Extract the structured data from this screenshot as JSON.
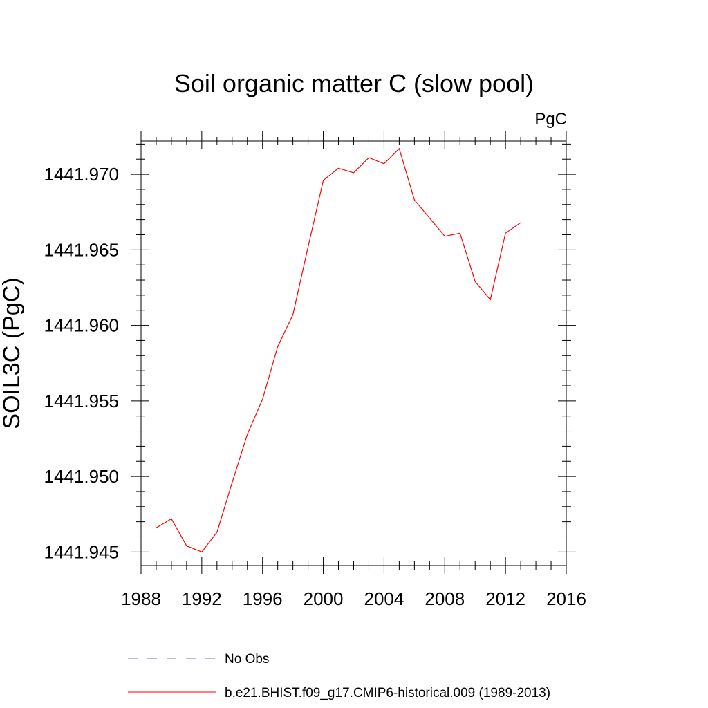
{
  "chart_data": {
    "type": "line",
    "title": "Soil organic matter C (slow pool)",
    "units_label": "PgC",
    "ylabel": "SOIL3C  (PgC)",
    "xlabel": "",
    "xlim": [
      1988,
      2016
    ],
    "ylim": [
      1441.9441,
      1441.9722
    ],
    "x_ticks": [
      1988,
      1992,
      1996,
      2000,
      2004,
      2008,
      2012,
      2016
    ],
    "x_tick_labels": [
      "1988",
      "1992",
      "1996",
      "2000",
      "2004",
      "2008",
      "2012",
      "2016"
    ],
    "y_ticks": [
      1441.945,
      1441.95,
      1441.955,
      1441.96,
      1441.965,
      1441.97
    ],
    "y_tick_labels": [
      "1441.945",
      "1441.950",
      "1441.955",
      "1441.960",
      "1441.965",
      "1441.970"
    ],
    "grid": false,
    "legend_position": "bottom",
    "series": [
      {
        "name": "b.e21.BHIST.f09_g17.CMIP6-historical.009 (1989-2013)",
        "color": "#ff0000",
        "style": "solid",
        "x": [
          1989,
          1990,
          1991,
          1992,
          1993,
          1994,
          1995,
          1996,
          1997,
          1998,
          1999,
          2000,
          2001,
          2002,
          2003,
          2004,
          2005,
          2006,
          2007,
          2008,
          2009,
          2010,
          2011,
          2012,
          2013
        ],
        "y": [
          1441.9466,
          1441.9472,
          1441.9454,
          1441.945,
          1441.9463,
          1441.9496,
          1441.9528,
          1441.9551,
          1441.9586,
          1441.9607,
          1441.9652,
          1441.9696,
          1441.9704,
          1441.9701,
          1441.9711,
          1441.9707,
          1441.9717,
          1441.9683,
          1441.9671,
          1441.9659,
          1441.9661,
          1441.9629,
          1441.9617,
          1441.9661,
          1441.9668
        ]
      }
    ],
    "legend": [
      {
        "label": "No Obs",
        "color": "#7b6fb0",
        "style": "dashed"
      },
      {
        "label": "b.e21.BHIST.f09_g17.CMIP6-historical.009 (1989-2013)",
        "color": "#ff0000",
        "style": "solid"
      }
    ]
  }
}
